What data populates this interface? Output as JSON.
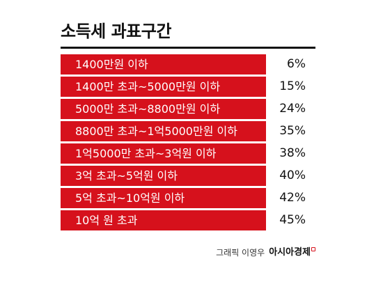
{
  "title": "소득세 과표구간",
  "rows": [
    {
      "bracket": "1400만원 이하",
      "rate": "6%"
    },
    {
      "bracket": "1400만 초과~5000만원 이하",
      "rate": "15%"
    },
    {
      "bracket": "5000만 초과~8800만원 이하",
      "rate": "24%"
    },
    {
      "bracket": "8800만 초과~1억5000만원 이하",
      "rate": "35%"
    },
    {
      "bracket": "1억5000만 초과~3억원 이하",
      "rate": "38%"
    },
    {
      "bracket": "3억 초과~5억원 이하",
      "rate": "40%"
    },
    {
      "bracket": "5억 초과~10억원 이하",
      "rate": "42%"
    },
    {
      "bracket": "10억 원 초과",
      "rate": "45%"
    }
  ],
  "credit": {
    "label": "그래픽 이영우",
    "brand": "아시아경제"
  },
  "colors": {
    "row_background": "#d6111c",
    "text_dark": "#111111",
    "brand_accent": "#d6111c"
  }
}
